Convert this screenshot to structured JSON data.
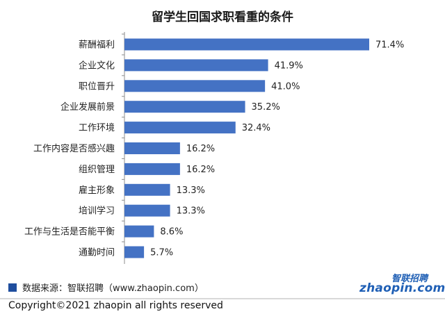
{
  "chart_data": {
    "type": "bar",
    "orientation": "horizontal",
    "title": "留学生回国求职看重的条件",
    "categories": [
      "薪酬福利",
      "企业文化",
      "职位晋升",
      "企业发展前景",
      "工作环境",
      "工作内容是否感兴趣",
      "组织管理",
      "雇主形象",
      "培训学习",
      "工作与生活是否能平衡",
      "通勤时间"
    ],
    "values": [
      71.4,
      41.9,
      41.0,
      35.2,
      32.4,
      16.2,
      16.2,
      13.3,
      13.3,
      8.6,
      5.7
    ],
    "value_labels": [
      "71.4%",
      "41.9%",
      "41.0%",
      "35.2%",
      "32.4%",
      "16.2%",
      "16.2%",
      "13.3%",
      "13.3%",
      "8.6%",
      "5.7%"
    ],
    "xlim": [
      0,
      75
    ],
    "xlabel": "",
    "ylabel": "",
    "grid": false,
    "bar_color": "#4472c4"
  },
  "footer": {
    "source_text": "数据来源：智联招聘（www.zhaopin.com）",
    "copyright_text": "Copyright©2021 zhaopin all rights reserved"
  },
  "logo": {
    "cn_text": "智联招聘",
    "en_text": "zhaopin.com",
    "brand_color": "#1f5fb5",
    "accent_color": "#f29b1d"
  }
}
